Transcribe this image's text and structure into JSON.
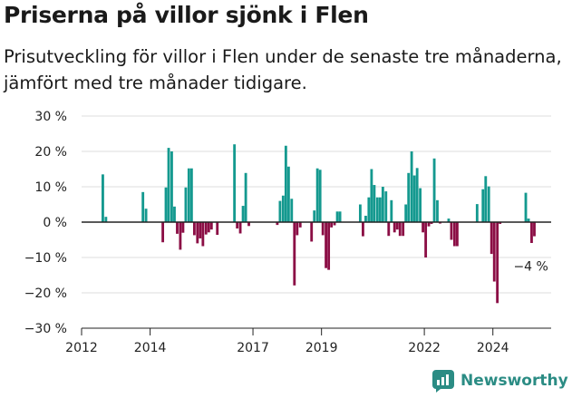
{
  "title": "Priserna på villor sjönk i Flen",
  "subtitle": "Prisutveckling för villor i Flen under de senaste tre månaderna, jämfört med tre månader tidigare.",
  "brand": {
    "name": "Newsworthy",
    "color": "#2b8c84"
  },
  "colors": {
    "positive": "#14998f",
    "negative": "#8b0e45",
    "grid": "#dddddd",
    "axis": "#222222"
  },
  "chart_data": {
    "type": "bar",
    "y_unit": "percent",
    "ylim": [
      -30,
      30
    ],
    "yticks": [
      30,
      20,
      10,
      0,
      -10,
      -20,
      -30
    ],
    "ytick_labels": [
      "30 %",
      "20 %",
      "10 %",
      "0 %",
      "−10 %",
      "−20 %",
      "−30 %"
    ],
    "xlim": [
      2012.0,
      2025.7
    ],
    "xticks": [
      2012,
      2014,
      2017,
      2019,
      2022,
      2024
    ],
    "xtick_labels": [
      "2012",
      "2014",
      "2017",
      "2019",
      "2022",
      "2024"
    ],
    "grid": true,
    "annotation": {
      "text": "−4 %",
      "x": 2025.13,
      "y": -4
    },
    "x": [
      2012.62,
      2012.71,
      2013.79,
      2013.88,
      2014.37,
      2014.46,
      2014.54,
      2014.63,
      2014.71,
      2014.79,
      2014.88,
      2014.96,
      2015.04,
      2015.13,
      2015.21,
      2015.29,
      2015.38,
      2015.46,
      2015.54,
      2015.63,
      2015.71,
      2015.79,
      2015.96,
      2016.46,
      2016.54,
      2016.63,
      2016.71,
      2016.79,
      2016.88,
      2017.71,
      2017.79,
      2017.88,
      2017.96,
      2018.04,
      2018.13,
      2018.21,
      2018.29,
      2018.38,
      2018.71,
      2018.79,
      2018.88,
      2018.96,
      2019.04,
      2019.13,
      2019.21,
      2019.29,
      2019.38,
      2019.46,
      2019.54,
      2020.13,
      2020.21,
      2020.29,
      2020.38,
      2020.46,
      2020.54,
      2020.63,
      2020.71,
      2020.79,
      2020.88,
      2020.96,
      2021.04,
      2021.13,
      2021.21,
      2021.29,
      2021.38,
      2021.46,
      2021.54,
      2021.63,
      2021.71,
      2021.79,
      2021.88,
      2021.96,
      2022.04,
      2022.13,
      2022.21,
      2022.29,
      2022.38,
      2022.46,
      2022.71,
      2022.79,
      2022.88,
      2022.96,
      2023.54,
      2023.71,
      2023.79,
      2023.88,
      2023.96,
      2024.04,
      2024.13,
      2024.21,
      2024.96,
      2025.04,
      2025.13,
      2025.21
    ],
    "values": [
      13.5,
      1.5,
      8.5,
      3.8,
      -5.7,
      9.8,
      21,
      20,
      4.4,
      -3.3,
      -7.8,
      -3,
      9.8,
      15.2,
      15.2,
      -3.7,
      -6,
      -4.6,
      -6.8,
      -3.5,
      -2.9,
      -2.1,
      -3.6,
      22,
      -1.8,
      -3.2,
      4.6,
      13.9,
      -1.1,
      -0.8,
      6,
      7.5,
      21.6,
      15.7,
      6.6,
      -17.9,
      -3.7,
      -1.5,
      -5.5,
      3.3,
      15.2,
      14.8,
      -3.7,
      -13,
      -13.5,
      -1.5,
      -0.9,
      3,
      3,
      5,
      -4,
      1.8,
      7,
      15,
      10.5,
      7,
      7,
      10,
      8.7,
      -3.9,
      6.2,
      -2.9,
      -2.1,
      -3.9,
      -3.9,
      5,
      13.9,
      20,
      13.2,
      15.3,
      9.6,
      -2.9,
      -10,
      -1.2,
      -0.5,
      18,
      6.2,
      -0.4,
      1,
      -5,
      -6.8,
      -6.8,
      5.1,
      9.3,
      13,
      10.1,
      -9,
      -16.8,
      -22.9,
      -0.5,
      8.3,
      1,
      -5.9,
      -4
    ]
  }
}
